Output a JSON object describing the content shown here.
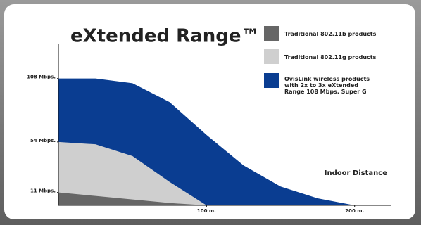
{
  "chart_data": {
    "type": "area",
    "title": "eXtended Range™",
    "annotation": "Indoor Distance",
    "x": [
      0,
      25,
      50,
      75,
      100,
      125,
      150,
      175,
      200
    ],
    "series": [
      {
        "name": "OvisLink wireless products with 2x to 3x eXtended Range 108 Mbps. Super G",
        "color": "#0a3d91",
        "values": [
          108,
          108,
          104,
          88,
          60,
          34,
          16,
          6,
          0
        ]
      },
      {
        "name": "Traditional 802.11g products",
        "color": "#cfcfcf",
        "values": [
          54,
          52,
          42,
          20,
          0,
          0,
          0,
          0,
          0
        ]
      },
      {
        "name": "Traditional 802.11b products",
        "color": "#666666",
        "values": [
          11,
          8,
          5,
          2,
          0,
          0,
          0,
          0,
          0
        ]
      }
    ],
    "legend_order": [
      2,
      1,
      0
    ],
    "xlim": [
      0,
      222
    ],
    "xticks": [
      {
        "value": 100,
        "label": "100 m."
      },
      {
        "value": 200,
        "label": "200 m."
      }
    ],
    "ylim": [
      0,
      115
    ],
    "yticks": [
      {
        "value": 11,
        "label": "11 Mbps."
      },
      {
        "value": 54,
        "label": "54 Mbps."
      },
      {
        "value": 108,
        "label": "108 Mbps."
      }
    ]
  }
}
